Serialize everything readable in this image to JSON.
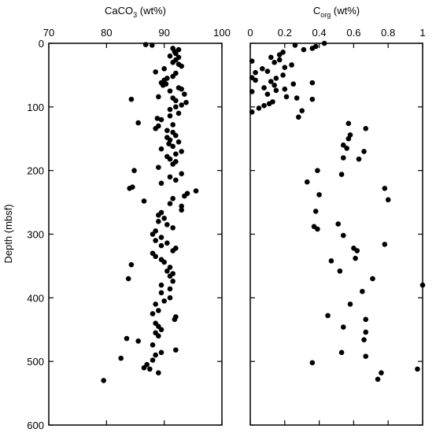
{
  "chart_data": [
    {
      "type": "scatter",
      "title": {
        "text": "CaCO",
        "sub": "3",
        "rest": " (wt%)"
      },
      "ylabel": "Depth (mbsf)",
      "color": "#000000",
      "y_inverted": true,
      "xlim": [
        70,
        100
      ],
      "xticks": [
        70,
        80,
        90,
        100
      ],
      "ylim": [
        0,
        600
      ],
      "yticks": [
        0,
        100,
        200,
        300,
        400,
        500,
        600
      ],
      "y": [
        2,
        3,
        8,
        10,
        13,
        16,
        20,
        22,
        26,
        30,
        33,
        36,
        40,
        45,
        47,
        52,
        55,
        58,
        62,
        64,
        66,
        70,
        72,
        75,
        80,
        84,
        86,
        88,
        90,
        93,
        97,
        100,
        104,
        110,
        114,
        118,
        120,
        125,
        128,
        130,
        134,
        137,
        140,
        145,
        148,
        152,
        155,
        158,
        162,
        166,
        170,
        174,
        178,
        182,
        186,
        190,
        195,
        200,
        205,
        210,
        215,
        220,
        226,
        228,
        232,
        236,
        240,
        244,
        248,
        252,
        256,
        262,
        266,
        270,
        275,
        280,
        285,
        290,
        295,
        300,
        305,
        310,
        314,
        318,
        322,
        326,
        330,
        335,
        340,
        344,
        348,
        352,
        358,
        362,
        366,
        370,
        374,
        380,
        386,
        392,
        400,
        405,
        410,
        420,
        425,
        430,
        434,
        440,
        445,
        450,
        455,
        460,
        464,
        468,
        474,
        482,
        486,
        490,
        495,
        498,
        505,
        510,
        512,
        518,
        530
      ],
      "x": [
        86.8,
        87.9,
        91.5,
        92.5,
        91.8,
        92.0,
        91.0,
        92.5,
        92.0,
        91.5,
        92.5,
        93.0,
        90.0,
        88.5,
        92.0,
        91.5,
        90.5,
        90.0,
        89.5,
        90.3,
        89.8,
        92.5,
        93.0,
        91.0,
        93.5,
        89.0,
        91.5,
        84.3,
        92.0,
        93.8,
        93.0,
        92.0,
        91.0,
        92.5,
        91.0,
        88.8,
        89.5,
        85.5,
        91.5,
        89.0,
        88.5,
        90.5,
        91.5,
        92.0,
        90.5,
        91.0,
        92.5,
        90.8,
        91.5,
        89.5,
        93.0,
        92.0,
        90.5,
        91.0,
        92.0,
        91.5,
        89.0,
        84.8,
        93.0,
        91.0,
        92.0,
        89.5,
        84.5,
        84.0,
        95.5,
        94.0,
        93.5,
        91.5,
        86.5,
        91.0,
        93.0,
        93.0,
        89.5,
        89.0,
        90.0,
        89.0,
        90.5,
        91.5,
        88.5,
        88.0,
        89.5,
        88.5,
        90.5,
        89.5,
        92.0,
        91.5,
        88.0,
        88.5,
        89.5,
        90.0,
        84.3,
        91.0,
        90.5,
        91.5,
        91.0,
        83.8,
        91.5,
        89.5,
        91.0,
        89.5,
        91.0,
        90.0,
        88.5,
        89.0,
        88.0,
        92.0,
        91.8,
        88.5,
        89.0,
        89.5,
        88.5,
        89.0,
        83.5,
        85.5,
        88.0,
        92.0,
        89.5,
        88.5,
        82.5,
        88.0,
        87.0,
        86.5,
        87.5,
        89.0,
        79.5
      ]
    },
    {
      "type": "scatter",
      "title": {
        "text": "C",
        "sub": "org",
        "rest": " (wt%)"
      },
      "color": "#000000",
      "y_inverted": true,
      "xlim": [
        0,
        1
      ],
      "xticks": [
        0,
        0.2,
        0.4,
        0.6,
        0.8,
        1
      ],
      "ylim": [
        0,
        600
      ],
      "yticks": [
        0,
        100,
        200,
        300,
        400,
        500,
        600
      ],
      "y": [
        0,
        3,
        5,
        8,
        10,
        14,
        18,
        22,
        26,
        28,
        30,
        34,
        38,
        40,
        44,
        46,
        50,
        54,
        55,
        58,
        60,
        62,
        64,
        66,
        70,
        72,
        74,
        76,
        80,
        84,
        86,
        88,
        92,
        95,
        98,
        102,
        106,
        108,
        116,
        126,
        134,
        144,
        150,
        160,
        165,
        170,
        180,
        182,
        200,
        206,
        218,
        228,
        238,
        246,
        264,
        284,
        288,
        292,
        302,
        316,
        322,
        326,
        338,
        342,
        358,
        370,
        380,
        390,
        410,
        428,
        434,
        446,
        454,
        466,
        486,
        492,
        502,
        512,
        518,
        528
      ],
      "x": [
        0.43,
        0.26,
        0.38,
        0.36,
        0.31,
        0.19,
        0.17,
        0.12,
        0.17,
        0.01,
        0.14,
        0.24,
        0.2,
        0.07,
        0.1,
        0.03,
        0.19,
        0.01,
        0.15,
        0.03,
        0.12,
        0.36,
        0.25,
        0.14,
        0.08,
        0.2,
        0.15,
        0.01,
        0.1,
        0.21,
        0.27,
        0.36,
        0.13,
        0.11,
        0.08,
        0.05,
        0.3,
        0.01,
        0.28,
        0.57,
        0.67,
        0.58,
        0.57,
        0.54,
        0.56,
        0.66,
        0.54,
        0.63,
        0.39,
        0.53,
        0.33,
        0.78,
        0.4,
        0.8,
        0.38,
        0.51,
        0.37,
        0.39,
        0.54,
        0.78,
        0.6,
        0.62,
        0.61,
        0.47,
        0.52,
        0.71,
        1.0,
        0.65,
        0.58,
        0.45,
        0.67,
        0.54,
        0.67,
        0.66,
        0.53,
        0.67,
        0.36,
        0.97,
        0.76,
        0.74
      ]
    }
  ]
}
